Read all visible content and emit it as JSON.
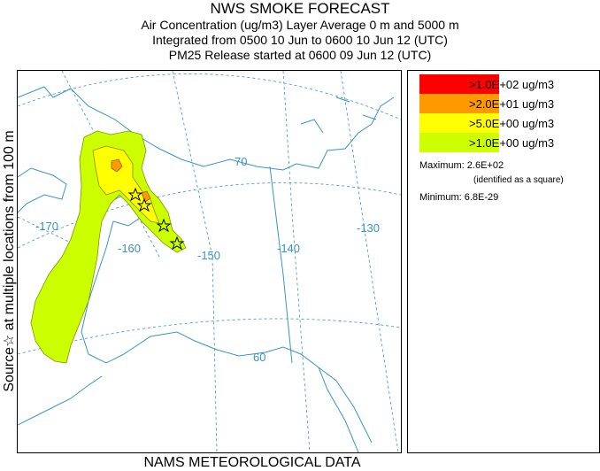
{
  "header": {
    "title": "NWS SMOKE FORECAST",
    "line1": "Air Concentration (ug/m3) Layer Average    0 m and  5000 m",
    "line2": "Integrated from 0500 10 Jun to 0600 10 Jun 12 (UTC)",
    "line3": "PM25 Release started at 0600 09 Jun 12 (UTC)"
  },
  "side_label": "Source☆  at multiple locations    from   100 m",
  "footer": "NAMS METEOROLOGICAL DATA",
  "map": {
    "graticule_labels": {
      "lon_170": "-170",
      "lon_160": "-160",
      "lon_150": "-150",
      "lon_140": "-140",
      "lon_130": "-130",
      "lat_70": "70",
      "lat_60": "60"
    },
    "colors": {
      "coast": "#3a93c9",
      "graticule": "#3a93c9",
      "level_1": "#ccff00",
      "level_2": "#ffff00",
      "level_3": "#ff9900",
      "level_4": "#ff0000"
    }
  },
  "legend": {
    "items": [
      {
        "color": "#ff0000",
        "label": ">1.0E+02 ug/m3"
      },
      {
        "color": "#ff9900",
        "label": ">2.0E+01 ug/m3"
      },
      {
        "color": "#ffff00",
        "label": ">5.0E+00 ug/m3"
      },
      {
        "color": "#ccff00",
        "label": ">1.0E+00 ug/m3"
      }
    ],
    "maximum": "Maximum: 2.6E+02",
    "maximum_note": "(identified as a square)",
    "minimum": "Minimum: 6.8E-29"
  }
}
